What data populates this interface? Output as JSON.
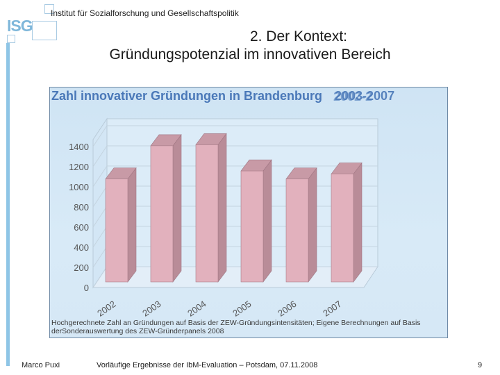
{
  "header": {
    "logo_text": "ISG",
    "institute": "Institut für Sozialforschung und Gesellschaftspolitik"
  },
  "slide": {
    "title_line1": "2. Der Kontext:",
    "title_line2": "Gründungspotenzial im innovativen Bereich"
  },
  "chart_data": {
    "type": "bar",
    "title": "Zahl innovativer Gründungen in Brandenburg",
    "title_overlap_a": "2002-2",
    "title_overlap_b": "2003-2007",
    "categories": [
      "2002",
      "2003",
      "2004",
      "2005",
      "2006",
      "2007"
    ],
    "values": [
      1050,
      1380,
      1390,
      1130,
      1050,
      1100
    ],
    "yticks": [
      "0",
      "200",
      "400",
      "600",
      "800",
      "1000",
      "1200",
      "1400"
    ],
    "ylim": [
      0,
      1400
    ],
    "grid": true,
    "style": "3d",
    "bar_color": "#e2b1bd",
    "footnote": "Hochgerechnete Zahl an Gründungen auf Basis der ZEW-Gründungsintensitäten; Eigene Berechnungen auf Basis derSonderauswertung des ZEW-Gründerpanels 2008"
  },
  "footer": {
    "author": "Marco Puxi",
    "event": "Vorläufige Ergebnisse der IbM-Evaluation – Potsdam, 07.11.2008",
    "page": "9"
  }
}
